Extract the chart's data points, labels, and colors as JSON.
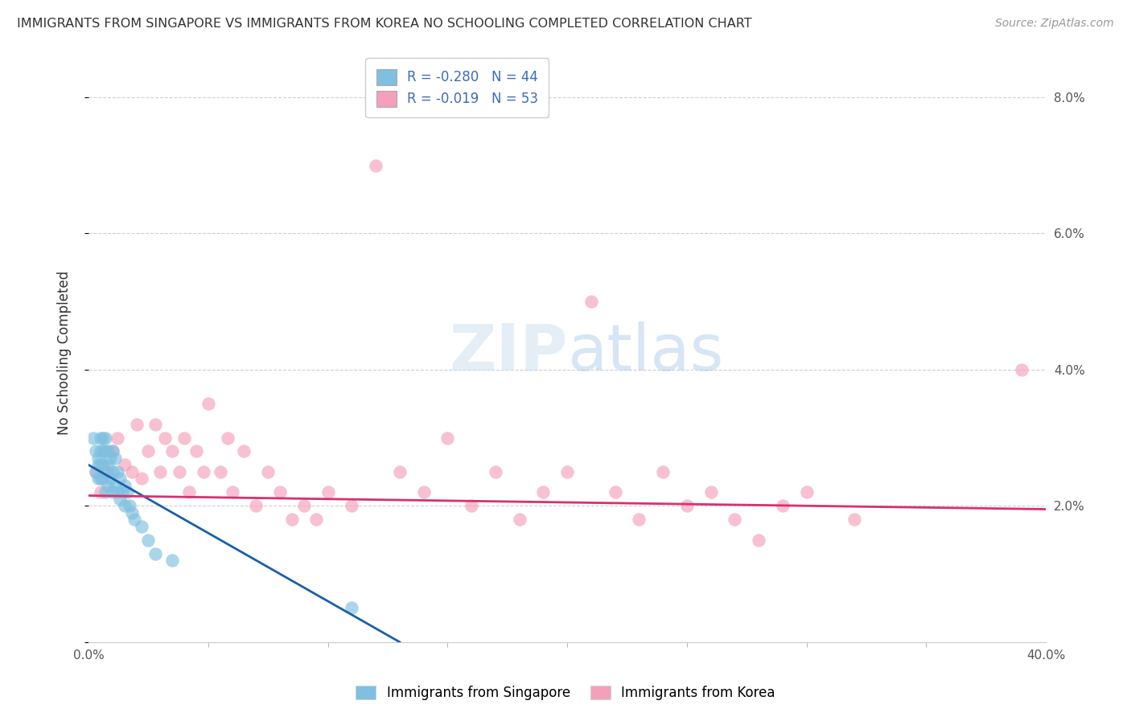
{
  "title": "IMMIGRANTS FROM SINGAPORE VS IMMIGRANTS FROM KOREA NO SCHOOLING COMPLETED CORRELATION CHART",
  "source": "Source: ZipAtlas.com",
  "ylabel": "No Schooling Completed",
  "xlim": [
    0.0,
    0.4
  ],
  "ylim": [
    0.0,
    0.085
  ],
  "yticks": [
    0.0,
    0.02,
    0.04,
    0.06,
    0.08
  ],
  "yticklabels": [
    "",
    "2.0%",
    "4.0%",
    "6.0%",
    "8.0%"
  ],
  "xtick_positions": [
    0.0,
    0.4
  ],
  "xtick_labels": [
    "0.0%",
    "40.0%"
  ],
  "legend_r1": "-0.280",
  "legend_n1": "44",
  "legend_r2": "-0.019",
  "legend_n2": "53",
  "color_singapore": "#7fbfdf",
  "color_korea": "#f4a0bb",
  "color_line_singapore": "#1a5fa8",
  "color_line_korea": "#d93070",
  "background_color": "#ffffff",
  "singapore_x": [
    0.002,
    0.003,
    0.003,
    0.004,
    0.004,
    0.004,
    0.005,
    0.005,
    0.005,
    0.005,
    0.006,
    0.006,
    0.006,
    0.006,
    0.007,
    0.007,
    0.007,
    0.007,
    0.008,
    0.008,
    0.008,
    0.009,
    0.009,
    0.01,
    0.01,
    0.01,
    0.011,
    0.011,
    0.012,
    0.012,
    0.013,
    0.013,
    0.014,
    0.015,
    0.015,
    0.016,
    0.017,
    0.018,
    0.019,
    0.022,
    0.025,
    0.028,
    0.035,
    0.11
  ],
  "singapore_y": [
    0.03,
    0.028,
    0.025,
    0.027,
    0.026,
    0.024,
    0.03,
    0.028,
    0.026,
    0.024,
    0.03,
    0.028,
    0.026,
    0.024,
    0.03,
    0.028,
    0.025,
    0.022,
    0.028,
    0.026,
    0.023,
    0.027,
    0.024,
    0.028,
    0.025,
    0.022,
    0.027,
    0.023,
    0.025,
    0.022,
    0.024,
    0.021,
    0.022,
    0.023,
    0.02,
    0.022,
    0.02,
    0.019,
    0.018,
    0.017,
    0.015,
    0.013,
    0.012,
    0.005
  ],
  "korea_x": [
    0.003,
    0.005,
    0.008,
    0.01,
    0.012,
    0.015,
    0.018,
    0.02,
    0.022,
    0.025,
    0.028,
    0.03,
    0.032,
    0.035,
    0.038,
    0.04,
    0.042,
    0.045,
    0.048,
    0.05,
    0.055,
    0.058,
    0.06,
    0.065,
    0.07,
    0.075,
    0.08,
    0.085,
    0.09,
    0.095,
    0.1,
    0.11,
    0.12,
    0.13,
    0.14,
    0.15,
    0.16,
    0.17,
    0.18,
    0.19,
    0.2,
    0.21,
    0.22,
    0.23,
    0.24,
    0.25,
    0.26,
    0.27,
    0.28,
    0.29,
    0.3,
    0.32,
    0.39
  ],
  "korea_y": [
    0.025,
    0.022,
    0.025,
    0.028,
    0.03,
    0.026,
    0.025,
    0.032,
    0.024,
    0.028,
    0.032,
    0.025,
    0.03,
    0.028,
    0.025,
    0.03,
    0.022,
    0.028,
    0.025,
    0.035,
    0.025,
    0.03,
    0.022,
    0.028,
    0.02,
    0.025,
    0.022,
    0.018,
    0.02,
    0.018,
    0.022,
    0.02,
    0.07,
    0.025,
    0.022,
    0.03,
    0.02,
    0.025,
    0.018,
    0.022,
    0.025,
    0.05,
    0.022,
    0.018,
    0.025,
    0.02,
    0.022,
    0.018,
    0.015,
    0.02,
    0.022,
    0.018,
    0.04
  ],
  "sg_line_x": [
    0.0,
    0.13
  ],
  "sg_line_y": [
    0.026,
    0.0
  ],
  "ko_line_x": [
    0.0,
    0.4
  ],
  "ko_line_y": [
    0.0215,
    0.0195
  ]
}
